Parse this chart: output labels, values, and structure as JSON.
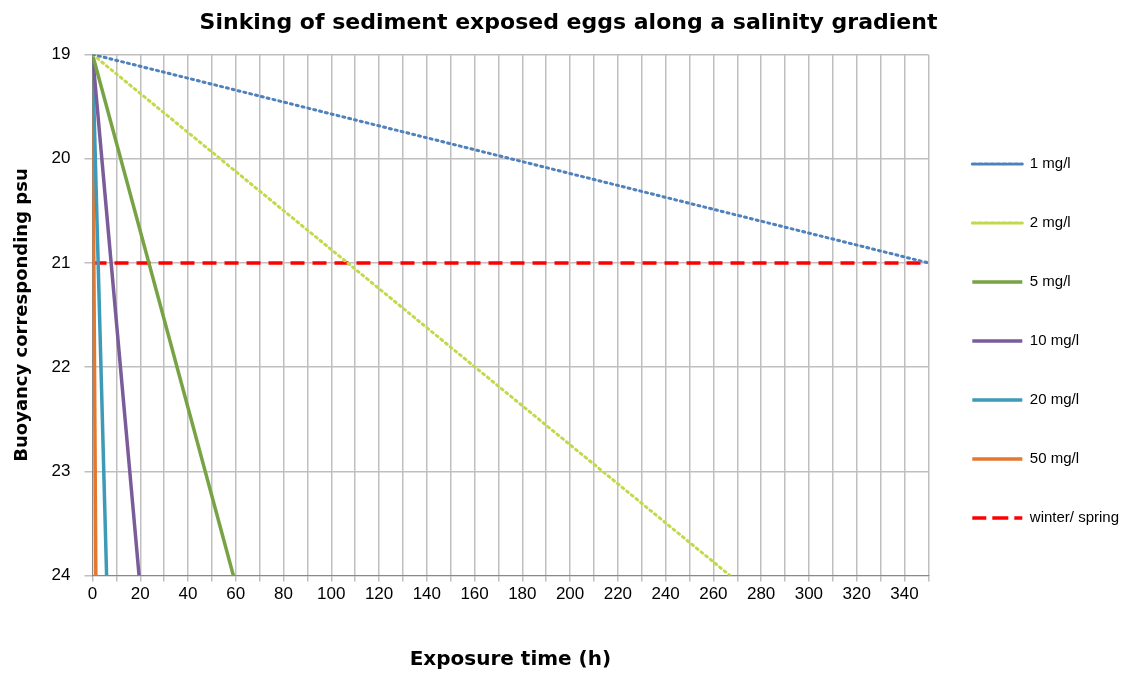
{
  "chart_data": {
    "type": "line",
    "title": "Sinking of sediment exposed eggs along a salinity gradient",
    "xlabel": "Exposure time (h)",
    "ylabel": "Buoyancy corresponding psu",
    "xlim": [
      0,
      350
    ],
    "xticks": [
      0,
      {
        "value": 10,
        "label": null
      },
      20,
      {
        "value": 30,
        "label": null
      },
      40,
      {
        "value": 50,
        "label": null
      },
      60,
      {
        "value": 70,
        "label": null
      },
      80,
      {
        "value": 90,
        "label": null
      },
      100,
      {
        "value": 110,
        "label": null
      },
      120,
      {
        "value": 130,
        "label": null
      },
      140,
      {
        "value": 150,
        "label": null
      },
      160,
      {
        "value": 170,
        "label": null
      },
      180,
      {
        "value": 190,
        "label": null
      },
      200,
      {
        "value": 210,
        "label": null
      },
      220,
      {
        "value": 230,
        "label": null
      },
      240,
      {
        "value": 250,
        "label": null
      },
      260,
      {
        "value": 270,
        "label": null
      },
      280,
      {
        "value": 290,
        "label": null
      },
      300,
      {
        "value": 310,
        "label": null
      },
      320,
      {
        "value": 330,
        "label": null
      },
      340,
      {
        "value": 350,
        "label": null
      }
    ],
    "ylim": [
      24,
      19
    ],
    "yticks": [
      19,
      20,
      21,
      22,
      23,
      24
    ],
    "grid": true,
    "legend": "right",
    "marker": "none",
    "series": [
      {
        "name": "1 mg/l",
        "color": "#4f81bd",
        "line_style": "dotted",
        "x": [
          0,
          350
        ],
        "values": [
          19,
          21
        ]
      },
      {
        "name": "2 mg/l",
        "color": "#c3d84a",
        "line_style": "dotted",
        "x": [
          0,
          267
        ],
        "values": [
          19,
          24
        ]
      },
      {
        "name": "5 mg/l",
        "color": "#77a345",
        "line_style": "solid",
        "x": [
          0,
          59
        ],
        "values": [
          19,
          24
        ]
      },
      {
        "name": "10 mg/l",
        "color": "#7a5c9a",
        "line_style": "solid",
        "x": [
          0,
          19.5
        ],
        "values": [
          19,
          24
        ]
      },
      {
        "name": "20 mg/l",
        "color": "#3d9bb8",
        "line_style": "solid",
        "x": [
          0,
          5.9
        ],
        "values": [
          19,
          24
        ]
      },
      {
        "name": "50 mg/l",
        "color": "#e3782f",
        "line_style": "solid",
        "x": [
          0,
          1.4
        ],
        "values": [
          19,
          24
        ]
      },
      {
        "name": "winter/ spring",
        "color": "#ff0000",
        "line_style": "dashed",
        "x": [
          0,
          350
        ],
        "values": [
          21,
          21
        ]
      }
    ]
  }
}
